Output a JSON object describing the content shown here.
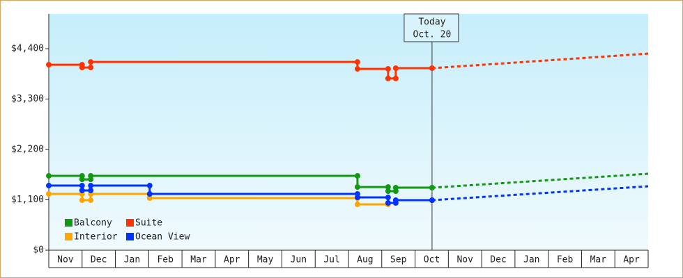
{
  "chart_data": {
    "type": "step-line",
    "categories": [
      "Nov",
      "Dec",
      "Jan",
      "Feb",
      "Mar",
      "Apr",
      "May",
      "Jun",
      "Jul",
      "Aug",
      "Sep",
      "Oct",
      "Nov",
      "Dec",
      "Jan",
      "Feb",
      "Mar",
      "Apr"
    ],
    "xlim": [
      0,
      18
    ],
    "ylim": [
      0,
      5160
    ],
    "yticks": [
      {
        "value": 0,
        "label": "$0"
      },
      {
        "value": 1100,
        "label": "$1,100"
      },
      {
        "value": 2200,
        "label": "$2,200"
      },
      {
        "value": 3300,
        "label": "$3,300"
      },
      {
        "value": 4400,
        "label": "$4,400"
      }
    ],
    "today": {
      "x": 11.51,
      "label": "Today",
      "date": "Oct. 20"
    },
    "forecast_x": [
      11.51,
      18
    ],
    "legend": "bottom-left",
    "series": [
      {
        "name": "Balcony",
        "color": "#129912",
        "x": [
          0,
          1.0,
          1.26,
          9.27,
          10.19,
          10.42,
          11.51
        ],
        "values": [
          1623,
          1547,
          1623,
          1380,
          1290,
          1365,
          1365
        ],
        "forecast_values": [
          1365,
          1669
        ]
      },
      {
        "name": "Suite",
        "color": "#ff3300",
        "x": [
          0,
          1.0,
          1.26,
          9.27,
          10.19,
          10.42,
          11.51
        ],
        "values": [
          4050,
          3990,
          4110,
          3960,
          3750,
          3975,
          3975
        ],
        "forecast_values": [
          3975,
          4293
        ]
      },
      {
        "name": "Interior",
        "color": "#ffa500",
        "x": [
          0,
          1.0,
          1.26,
          3.03,
          9.27,
          10.19
        ],
        "values": [
          1229,
          1092,
          1229,
          1138,
          1001,
          1001
        ]
      },
      {
        "name": "Ocean View",
        "color": "#0033ff",
        "x": [
          0,
          1.0,
          1.26,
          3.03,
          9.27,
          10.19,
          10.42,
          11.51
        ],
        "values": [
          1411,
          1305,
          1411,
          1229,
          1153,
          1032,
          1092,
          1092
        ],
        "forecast_values": [
          1092,
          1396
        ]
      }
    ]
  }
}
